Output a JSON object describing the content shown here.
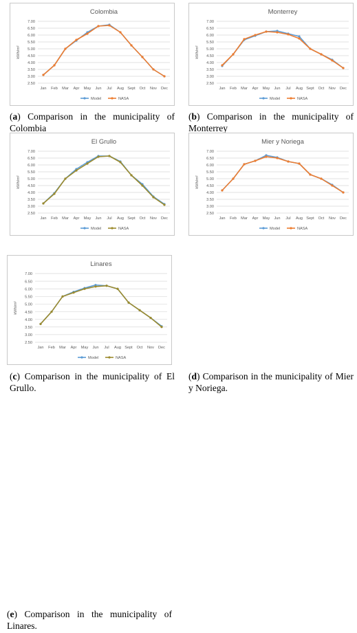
{
  "chart_data": [
    {
      "type": "line",
      "title": "Colombia",
      "ylabel": "kWh/m²",
      "ylim": [
        2.5,
        7.0
      ],
      "yticks": [
        "7.00",
        "6.50",
        "6.00",
        "5.50",
        "5.00",
        "4.50",
        "4.00",
        "3.50",
        "3.00",
        "2.50"
      ],
      "categories": [
        "Jan",
        "Feb",
        "Mar",
        "Apr",
        "May",
        "Jun",
        "Jul",
        "Aug",
        "Sept",
        "Oct",
        "Nov",
        "Dec"
      ],
      "legend_position": "bottom",
      "series": [
        {
          "name": "Model",
          "color": "#5b9bd5",
          "values": [
            3.1,
            3.8,
            5.0,
            5.6,
            6.2,
            6.65,
            6.75,
            6.2,
            5.25,
            4.4,
            3.5,
            3.0
          ]
        },
        {
          "name": "NASA",
          "color": "#ed7d31",
          "values": [
            3.1,
            3.8,
            5.0,
            5.65,
            6.1,
            6.65,
            6.7,
            6.2,
            5.25,
            4.4,
            3.5,
            3.0
          ]
        }
      ],
      "caption_label": "a",
      "caption_text": "Comparison in the municipality of Colombia"
    },
    {
      "type": "line",
      "title": "Monterrey",
      "ylabel": "kWh/m²",
      "ylim": [
        2.5,
        7.0
      ],
      "yticks": [
        "7.00",
        "6.50",
        "6.00",
        "5.50",
        "5.00",
        "4.50",
        "4.00",
        "3.50",
        "3.00",
        "2.50"
      ],
      "categories": [
        "Jan",
        "Feb",
        "Mar",
        "Apr",
        "May",
        "Jun",
        "Jul",
        "Aug",
        "Sept",
        "Oct",
        "Nov",
        "Dec"
      ],
      "legend_position": "bottom",
      "series": [
        {
          "name": "Model",
          "color": "#5b9bd5",
          "values": [
            3.75,
            4.6,
            5.65,
            5.95,
            6.25,
            6.3,
            6.1,
            5.9,
            5.0,
            4.6,
            4.2,
            3.6
          ]
        },
        {
          "name": "NASA",
          "color": "#ed7d31",
          "values": [
            3.8,
            4.6,
            5.7,
            6.0,
            6.25,
            6.2,
            6.05,
            5.75,
            5.0,
            4.6,
            4.15,
            3.6
          ]
        }
      ],
      "caption_label": "b",
      "caption_text": "Comparison in the municipality of Monterrey"
    },
    {
      "type": "line",
      "title": "El Grullo",
      "ylabel": "kWh/m²",
      "ylim": [
        2.5,
        7.0
      ],
      "yticks": [
        "7.00",
        "6.50",
        "6.00",
        "5.50",
        "5.00",
        "4.50",
        "4.00",
        "3.50",
        "3.00",
        "2.50"
      ],
      "categories": [
        "Jan",
        "Feb",
        "Mar",
        "Apr",
        "May",
        "Jun",
        "Jul",
        "Aug",
        "Sept",
        "Oct",
        "Nov",
        "Dec"
      ],
      "legend_position": "bottom",
      "series": [
        {
          "name": "Model",
          "color": "#5b9bd5",
          "values": [
            3.2,
            3.95,
            5.0,
            5.7,
            6.2,
            6.65,
            6.65,
            6.25,
            5.25,
            4.6,
            3.7,
            3.15
          ]
        },
        {
          "name": "NASA",
          "color": "#9c8b2e",
          "values": [
            3.2,
            3.9,
            5.0,
            5.6,
            6.1,
            6.6,
            6.65,
            6.2,
            5.25,
            4.5,
            3.65,
            3.1
          ]
        }
      ],
      "caption_label": "c",
      "caption_text": "Comparison in the municipality of El Grullo."
    },
    {
      "type": "line",
      "title": "Mier y Noriega",
      "ylabel": "kWh/m²",
      "ylim": [
        2.5,
        7.0
      ],
      "yticks": [
        "7.00",
        "6.50",
        "6.00",
        "5.50",
        "5.00",
        "4.50",
        "4.00",
        "3.50",
        "3.00",
        "2.50"
      ],
      "categories": [
        "Jan",
        "Feb",
        "Mar",
        "Apr",
        "May",
        "Jun",
        "Jul",
        "Aug",
        "Sept",
        "Oct",
        "Nov",
        "Dec"
      ],
      "legend_position": "bottom",
      "series": [
        {
          "name": "Model",
          "color": "#5b9bd5",
          "values": [
            4.15,
            5.0,
            6.05,
            6.3,
            6.7,
            6.55,
            6.25,
            6.1,
            5.3,
            5.0,
            4.55,
            4.0
          ]
        },
        {
          "name": "NASA",
          "color": "#ed7d31",
          "values": [
            4.15,
            5.0,
            6.05,
            6.3,
            6.6,
            6.5,
            6.25,
            6.1,
            5.3,
            5.0,
            4.5,
            4.0
          ]
        }
      ],
      "caption_label": "d",
      "caption_text": "Comparison in the municipality of Mier y Noriega."
    },
    {
      "type": "line",
      "title": "Linares",
      "ylabel": "kWh/m²",
      "ylim": [
        2.5,
        7.0
      ],
      "yticks": [
        "7.00",
        "6.50",
        "6.00",
        "5.50",
        "5.00",
        "4.50",
        "4.00",
        "3.50",
        "3.00",
        "2.50"
      ],
      "categories": [
        "Jan",
        "Feb",
        "Mar",
        "Apr",
        "May",
        "Jun",
        "Jul",
        "Aug",
        "Sept",
        "Oct",
        "Nov",
        "Dec"
      ],
      "legend_position": "bottom",
      "series": [
        {
          "name": "Model",
          "color": "#5b9bd5",
          "values": [
            3.7,
            4.5,
            5.5,
            5.8,
            6.05,
            6.25,
            6.2,
            6.0,
            5.1,
            4.6,
            4.1,
            3.55
          ]
        },
        {
          "name": "NASA",
          "color": "#9c8b2e",
          "values": [
            3.7,
            4.5,
            5.5,
            5.75,
            6.0,
            6.15,
            6.2,
            6.0,
            5.1,
            4.6,
            4.1,
            3.5
          ]
        }
      ],
      "caption_label": "e",
      "caption_text": "Comparison in the municipality of Linares."
    }
  ]
}
